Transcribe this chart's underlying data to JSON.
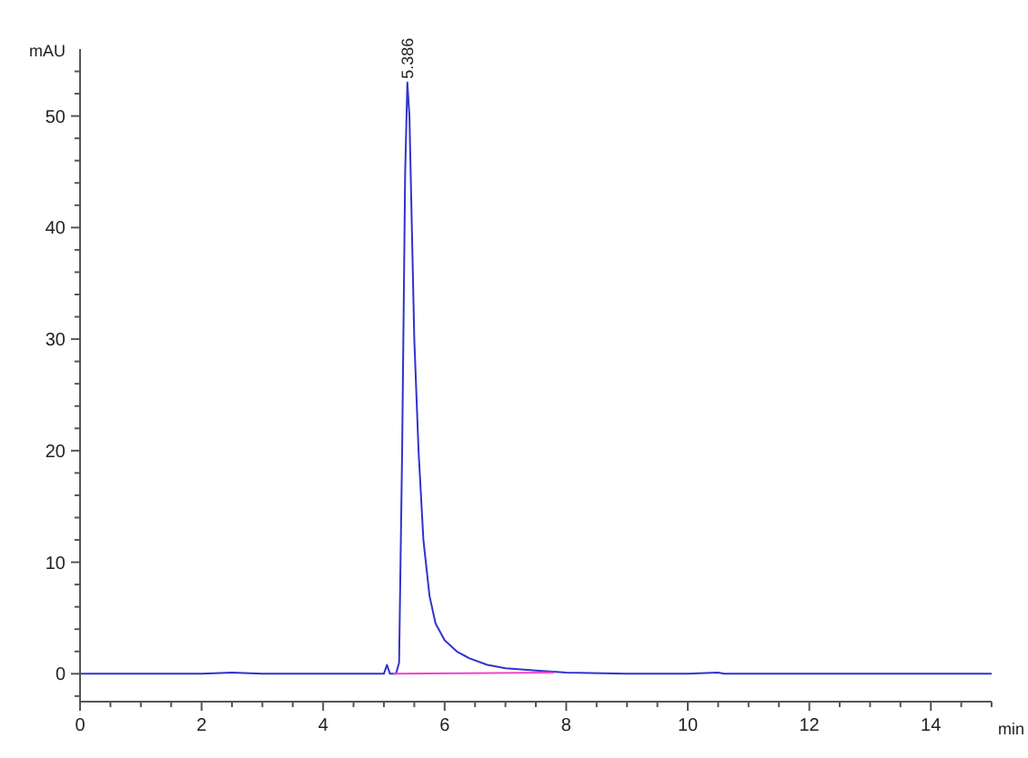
{
  "chart_data": {
    "type": "line",
    "xlabel": "min",
    "ylabel": "mAU",
    "xlim": [
      0,
      15
    ],
    "ylim": [
      -2.5,
      56
    ],
    "xticks": [
      0,
      {
        "value": 0.5,
        "label": null
      },
      {
        "value": 1,
        "label": null
      },
      {
        "value": 1.5,
        "label": null
      },
      2,
      {
        "value": 2.5,
        "label": null
      },
      {
        "value": 3,
        "label": null
      },
      {
        "value": 3.5,
        "label": null
      },
      4,
      {
        "value": 4.5,
        "label": null
      },
      {
        "value": 5,
        "label": null
      },
      {
        "value": 5.5,
        "label": null
      },
      6,
      {
        "value": 6.5,
        "label": null
      },
      {
        "value": 7,
        "label": null
      },
      {
        "value": 7.5,
        "label": null
      },
      8,
      {
        "value": 8.5,
        "label": null
      },
      {
        "value": 9,
        "label": null
      },
      {
        "value": 9.5,
        "label": null
      },
      10,
      {
        "value": 10.5,
        "label": null
      },
      {
        "value": 11,
        "label": null
      },
      {
        "value": 11.5,
        "label": null
      },
      12,
      {
        "value": 12.5,
        "label": null
      },
      {
        "value": 13,
        "label": null
      },
      {
        "value": 13.5,
        "label": null
      },
      14,
      {
        "value": 14.5,
        "label": null
      },
      {
        "value": 15,
        "label": null
      }
    ],
    "yticks": [
      {
        "value": -2,
        "label": null
      },
      0,
      {
        "value": 2,
        "label": null
      },
      {
        "value": 4,
        "label": null
      },
      {
        "value": 6,
        "label": null
      },
      {
        "value": 8,
        "label": null
      },
      10,
      {
        "value": 12,
        "label": null
      },
      {
        "value": 14,
        "label": null
      },
      {
        "value": 16,
        "label": null
      },
      {
        "value": 18,
        "label": null
      },
      20,
      {
        "value": 22,
        "label": null
      },
      {
        "value": 24,
        "label": null
      },
      {
        "value": 26,
        "label": null
      },
      {
        "value": 28,
        "label": null
      },
      30,
      {
        "value": 32,
        "label": null
      },
      {
        "value": 34,
        "label": null
      },
      {
        "value": 36,
        "label": null
      },
      {
        "value": 38,
        "label": null
      },
      40,
      {
        "value": 42,
        "label": null
      },
      {
        "value": 44,
        "label": null
      },
      {
        "value": 46,
        "label": null
      },
      {
        "value": 48,
        "label": null
      },
      50,
      {
        "value": 52,
        "label": null
      },
      {
        "value": 54,
        "label": null
      }
    ],
    "marker": "none",
    "line_style": "solid",
    "series": [
      {
        "color": "#3333cc",
        "x": [
          0,
          1,
          2,
          2.5,
          3,
          4,
          5,
          5.05,
          5.1,
          5.2,
          5.25,
          5.3,
          5.35,
          5.386,
          5.42,
          5.5,
          5.57,
          5.65,
          5.75,
          5.85,
          6.0,
          6.2,
          6.4,
          6.7,
          7.0,
          7.5,
          8,
          9,
          10,
          10.5,
          10.6,
          11,
          12,
          13,
          14,
          15
        ],
        "values": [
          0,
          0,
          0,
          0.1,
          0,
          0,
          0,
          0.8,
          0,
          0,
          1,
          20,
          45,
          53,
          50,
          30,
          20,
          12,
          7,
          4.5,
          3,
          2,
          1.4,
          0.8,
          0.5,
          0.3,
          0.1,
          0,
          0,
          0.1,
          0,
          0,
          0,
          0,
          0,
          0
        ]
      },
      {
        "color": "#ee44cc",
        "x": [
          5.15,
          7.8
        ],
        "values": [
          0,
          0.1
        ]
      }
    ],
    "annotations": [
      {
        "text": "5.386",
        "x": 5.386,
        "y": 53
      }
    ]
  }
}
